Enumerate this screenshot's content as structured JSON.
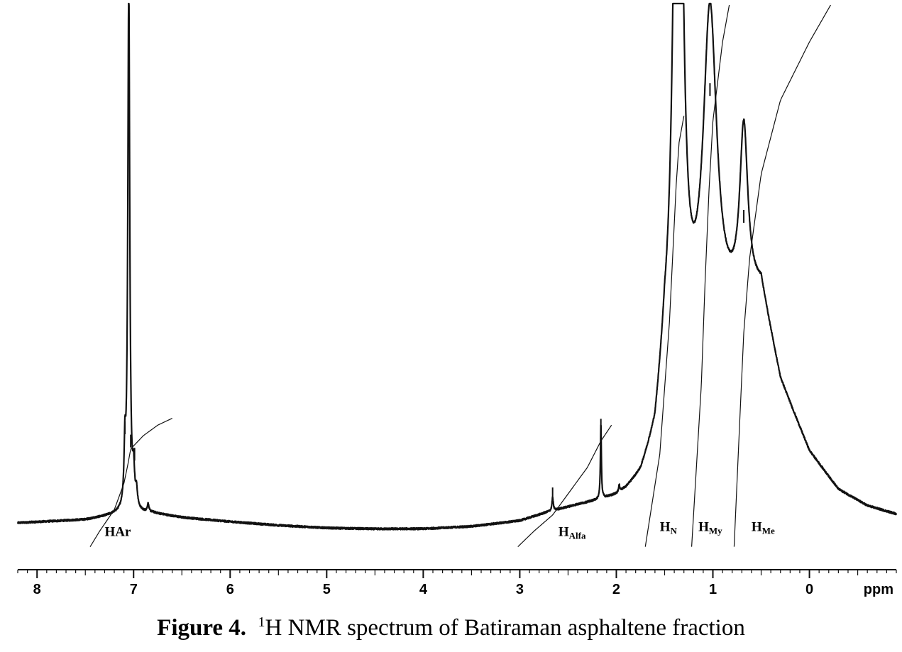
{
  "chart_data": {
    "type": "line",
    "xlabel": "ppm",
    "x_reversed": true,
    "xlim": [
      8.2,
      -0.9
    ],
    "x_ticks": [
      8,
      7,
      6,
      5,
      4,
      3,
      2,
      1,
      0
    ],
    "x_tick_labels": [
      "8",
      "7",
      "6",
      "5",
      "4",
      "3",
      "2",
      "1",
      "0"
    ],
    "x_minor_tick_step": 0.1,
    "grid": false,
    "legend": "none",
    "baseline": {
      "x": [
        8.2,
        7.5,
        7.2,
        6.8,
        6.5,
        6.0,
        5.5,
        5.0,
        4.5,
        4.0,
        3.5,
        3.0,
        2.7,
        2.4,
        2.2,
        2.0,
        1.9,
        1.75,
        1.6,
        1.5,
        0.5,
        0.3,
        0.0,
        -0.3,
        -0.6,
        -0.9
      ],
      "y": [
        2.0,
        2.6,
        3.5,
        3.8,
        3.0,
        2.2,
        1.5,
        1.0,
        0.8,
        0.8,
        1.2,
        2.2,
        3.8,
        5.0,
        5.6,
        6.3,
        7.2,
        9.5,
        16,
        30,
        45,
        28,
        15,
        8,
        5,
        3.5
      ]
    },
    "peaks": [
      {
        "x": 7.05,
        "height": 100,
        "width": 0.012
      },
      {
        "x": 7.09,
        "height": 10,
        "width": 0.01
      },
      {
        "x": 7.0,
        "height": 6,
        "width": 0.012
      },
      {
        "x": 6.97,
        "height": 3,
        "width": 0.012
      },
      {
        "x": 6.85,
        "height": 1.5,
        "width": 0.01
      },
      {
        "x": 2.66,
        "height": 2.5,
        "width": 0.008
      },
      {
        "x": 2.16,
        "height": 14,
        "width": 0.006
      },
      {
        "x": 1.97,
        "height": 1.2,
        "width": 0.008
      },
      {
        "x": 1.36,
        "height": 165,
        "width": 0.045
      },
      {
        "x": 1.03,
        "height": 60,
        "width": 0.085
      },
      {
        "x": 0.68,
        "height": 32,
        "width": 0.05
      }
    ],
    "y_display_max": 100,
    "integrals": [
      {
        "label": "HAr",
        "curve_x": [
          7.45,
          7.35,
          7.2,
          7.1,
          7.06,
          7.03,
          6.9,
          6.75,
          6.6
        ],
        "curve_y": [
          -2.5,
          0.5,
          4.5,
          9.5,
          13,
          16,
          18.5,
          20.5,
          21.8
        ]
      },
      {
        "label": "HAlfa",
        "curve_x": [
          3.02,
          2.85,
          2.66,
          2.5,
          2.3,
          2.16,
          2.05
        ],
        "curve_y": [
          -2.5,
          0.5,
          3.5,
          7.5,
          12.5,
          17.5,
          20.5
        ]
      },
      {
        "label": "HN",
        "curve_x": [
          1.7,
          1.55,
          1.45,
          1.38,
          1.35,
          1.32,
          1.3
        ],
        "curve_y": [
          -2.5,
          15,
          40,
          66,
          74,
          77,
          79
        ]
      },
      {
        "label": "HMy",
        "curve_x": [
          1.22,
          1.12,
          1.08,
          1.04,
          1.0,
          0.9,
          0.83
        ],
        "curve_y": [
          -2.5,
          28,
          48,
          65,
          78,
          93,
          100
        ]
      },
      {
        "label": "HMe",
        "curve_x": [
          0.78,
          0.72,
          0.68,
          0.62,
          0.5,
          0.3,
          0.0,
          -0.22
        ],
        "curve_y": [
          -2.5,
          22,
          38,
          52,
          68,
          82,
          93,
          100
        ]
      }
    ],
    "peak_markers": [
      {
        "x": 7.09,
        "y": 20
      },
      {
        "x": 7.03,
        "y": 17.5
      },
      {
        "x": 6.99,
        "y": 15
      },
      {
        "x": 2.66,
        "y": 7.5
      },
      {
        "x": 2.16,
        "y": 20.5
      },
      {
        "x": 1.03,
        "y": 84
      },
      {
        "x": 0.68,
        "y": 60
      }
    ],
    "region_labels": [
      {
        "main": "HAr",
        "sub": "",
        "x": 7.3,
        "y": -0.5
      },
      {
        "main": "H",
        "sub": "Alfa",
        "x": 2.6,
        "y": -0.5
      },
      {
        "main": "H",
        "sub": "N",
        "x": 1.55,
        "y": 0.5
      },
      {
        "main": "H",
        "sub": "My",
        "x": 1.15,
        "y": 0.5
      },
      {
        "main": "H",
        "sub": "Me",
        "x": 0.6,
        "y": 0.5
      }
    ]
  },
  "caption": {
    "label": "Figure 4.",
    "superscript": "1",
    "text": "H NMR spectrum of Batiraman asphaltene fraction"
  }
}
